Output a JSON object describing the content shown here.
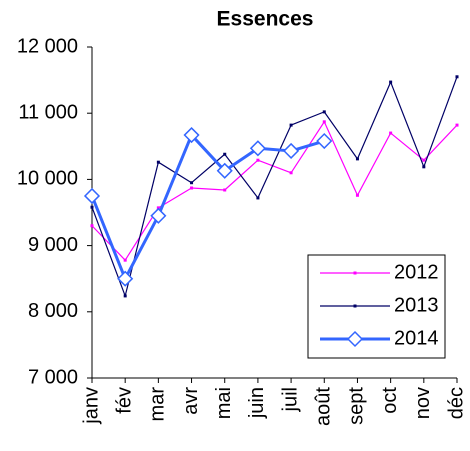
{
  "chart_data": {
    "type": "line",
    "title": "Essences",
    "categories": [
      "janv",
      "fév",
      "mar",
      "avr",
      "mai",
      "juin",
      "juil",
      "août",
      "sept",
      "oct",
      "nov",
      "déc"
    ],
    "series": [
      {
        "name": "2012",
        "color": "#ff00ff",
        "marker": "square",
        "line_width": 1.2,
        "values": [
          9300,
          8780,
          9570,
          9870,
          9840,
          10290,
          10100,
          10870,
          9760,
          10700,
          10290,
          10820
        ]
      },
      {
        "name": "2013",
        "color": "#000066",
        "marker": "square",
        "line_width": 1.2,
        "values": [
          9580,
          8240,
          10260,
          9950,
          10380,
          9720,
          10820,
          11020,
          10310,
          11470,
          10190,
          11550
        ]
      },
      {
        "name": "2014",
        "color": "#3366ff",
        "marker": "diamond",
        "line_width": 3,
        "values": [
          9750,
          8500,
          9450,
          10670,
          10130,
          10470,
          10430,
          10580,
          null,
          null,
          null,
          null
        ]
      }
    ],
    "ylim": [
      7000,
      12000
    ],
    "yticks": [
      {
        "value": 7000,
        "label": "7 000"
      },
      {
        "value": 8000,
        "label": "8 000"
      },
      {
        "value": 9000,
        "label": "9 000"
      },
      {
        "value": 10000,
        "label": "10 000"
      },
      {
        "value": 11000,
        "label": "11 000"
      },
      {
        "value": 12000,
        "label": "12 000"
      }
    ],
    "grid": false,
    "legend": "lower right"
  }
}
